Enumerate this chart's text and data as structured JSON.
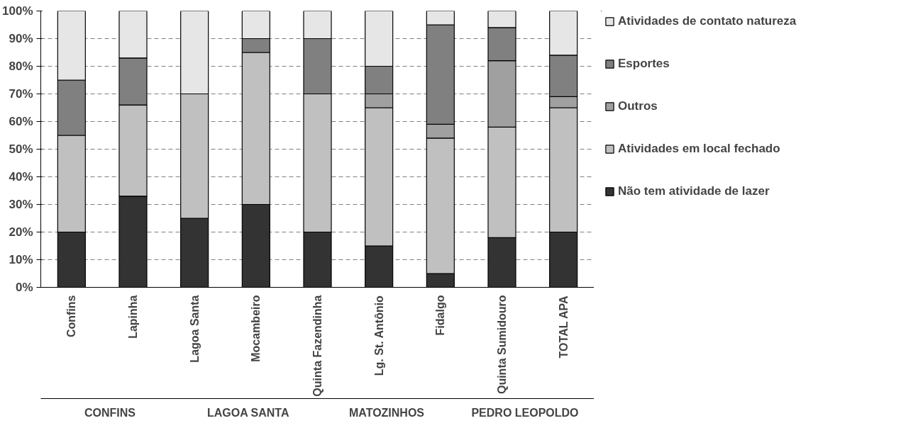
{
  "chart_data": {
    "type": "bar",
    "stacked": true,
    "categories": [
      "Confins",
      "Lapinha",
      "Lagoa Santa",
      "Mocambeiro",
      "Quinta Fazendinha",
      "Lg. St. Antônio",
      "Fidalgo",
      "Quinta Sumidouro",
      "TOTAL APA"
    ],
    "series": [
      {
        "name": "Não tem atividade de lazer",
        "color": "#333333",
        "values": [
          20,
          33,
          25,
          30,
          20,
          15,
          5,
          18,
          20
        ]
      },
      {
        "name": "Atividades em local fechado",
        "color": "#c0c0c0",
        "values": [
          35,
          33,
          45,
          55,
          50,
          50,
          49,
          40,
          45
        ]
      },
      {
        "name": "Outros",
        "color": "#a0a0a0",
        "values": [
          0,
          0,
          0,
          0,
          0,
          5,
          5,
          24,
          4
        ]
      },
      {
        "name": "Esportes",
        "color": "#808080",
        "values": [
          20,
          17,
          0,
          5,
          20,
          10,
          36,
          12,
          15
        ]
      },
      {
        "name": "Atividades de contato natureza",
        "color": "#e6e6e6",
        "values": [
          25,
          17,
          30,
          10,
          10,
          20,
          5,
          6,
          16
        ]
      }
    ],
    "ylim": [
      0,
      100
    ],
    "yticks": [
      {
        "value": 0,
        "label": "0%"
      },
      {
        "value": 10,
        "label": "10%"
      },
      {
        "value": 20,
        "label": "20%"
      },
      {
        "value": 30,
        "label": "30%"
      },
      {
        "value": 40,
        "label": "40%"
      },
      {
        "value": 50,
        "label": "50%"
      },
      {
        "value": 60,
        "label": "60%"
      },
      {
        "value": 70,
        "label": "70%"
      },
      {
        "value": 80,
        "label": "80%"
      },
      {
        "value": 90,
        "label": "90%"
      },
      {
        "value": 100,
        "label": "100%"
      }
    ],
    "grid": "y",
    "legend": "right",
    "annotations": [
      "CONFINS",
      "LAGOA SANTA",
      "MATOZINHOS",
      "PEDRO LEOPOLDO"
    ]
  }
}
